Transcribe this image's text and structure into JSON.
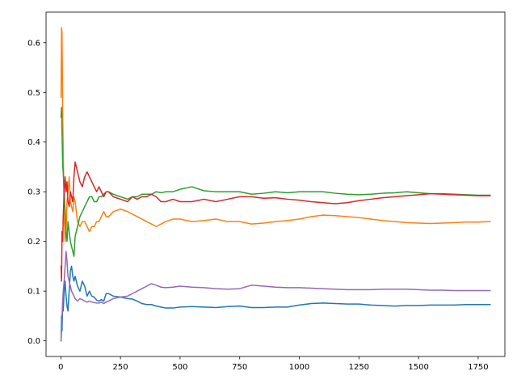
{
  "chart_data": {
    "type": "line",
    "title": "",
    "xlabel": "",
    "ylabel": "",
    "xlim": [
      -62,
      1862
    ],
    "ylim": [
      -0.0315,
      0.6615
    ],
    "xticks": [
      0,
      250,
      500,
      750,
      1000,
      1250,
      1500,
      1750
    ],
    "yticks": [
      0.0,
      0.1,
      0.2,
      0.3,
      0.4,
      0.5,
      0.6
    ],
    "xtick_labels": [
      "0",
      "250",
      "500",
      "750",
      "1000",
      "1250",
      "1500",
      "1750"
    ],
    "ytick_labels": [
      "0.0",
      "0.1",
      "0.2",
      "0.3",
      "0.4",
      "0.5",
      "0.6"
    ],
    "grid": false,
    "legend": "none",
    "series": [
      {
        "color": "#1f77b4",
        "x": [
          1,
          3,
          5,
          8,
          10,
          14,
          18,
          22,
          26,
          30,
          35,
          40,
          45,
          50,
          55,
          60,
          70,
          80,
          90,
          100,
          110,
          120,
          130,
          140,
          150,
          160,
          170,
          180,
          190,
          200,
          220,
          250,
          280,
          300,
          320,
          340,
          360,
          380,
          400,
          420,
          440,
          470,
          500,
          550,
          600,
          650,
          700,
          750,
          800,
          850,
          900,
          950,
          1000,
          1050,
          1100,
          1150,
          1200,
          1250,
          1300,
          1350,
          1400,
          1450,
          1500,
          1550,
          1600,
          1650,
          1700,
          1750,
          1800
        ],
        "y": [
          0.0,
          0.05,
          0.02,
          0.08,
          0.06,
          0.1,
          0.12,
          0.09,
          0.07,
          0.06,
          0.1,
          0.14,
          0.15,
          0.13,
          0.12,
          0.13,
          0.11,
          0.1,
          0.12,
          0.11,
          0.09,
          0.1,
          0.09,
          0.088,
          0.082,
          0.08,
          0.083,
          0.08,
          0.095,
          0.095,
          0.09,
          0.088,
          0.085,
          0.084,
          0.08,
          0.075,
          0.073,
          0.073,
          0.07,
          0.068,
          0.066,
          0.066,
          0.068,
          0.069,
          0.068,
          0.067,
          0.069,
          0.07,
          0.067,
          0.067,
          0.068,
          0.068,
          0.072,
          0.075,
          0.076,
          0.075,
          0.074,
          0.074,
          0.072,
          0.071,
          0.07,
          0.071,
          0.071,
          0.072,
          0.072,
          0.072,
          0.073,
          0.073,
          0.073
        ]
      },
      {
        "color": "#ff7f0e",
        "x": [
          1,
          3,
          5,
          8,
          10,
          14,
          18,
          22,
          26,
          30,
          35,
          40,
          45,
          50,
          55,
          60,
          70,
          80,
          90,
          100,
          110,
          120,
          130,
          140,
          150,
          160,
          170,
          180,
          190,
          200,
          220,
          250,
          280,
          300,
          320,
          340,
          360,
          380,
          400,
          420,
          440,
          470,
          500,
          550,
          600,
          650,
          700,
          750,
          800,
          850,
          900,
          950,
          1000,
          1050,
          1100,
          1150,
          1200,
          1250,
          1300,
          1350,
          1400,
          1450,
          1500,
          1550,
          1600,
          1650,
          1700,
          1750,
          1800
        ],
        "y": [
          0.49,
          0.63,
          0.62,
          0.45,
          0.38,
          0.25,
          0.2,
          0.22,
          0.28,
          0.3,
          0.33,
          0.28,
          0.27,
          0.26,
          0.29,
          0.28,
          0.24,
          0.23,
          0.24,
          0.24,
          0.23,
          0.22,
          0.23,
          0.23,
          0.24,
          0.24,
          0.25,
          0.26,
          0.25,
          0.25,
          0.26,
          0.265,
          0.26,
          0.255,
          0.25,
          0.245,
          0.24,
          0.235,
          0.23,
          0.235,
          0.24,
          0.245,
          0.245,
          0.24,
          0.242,
          0.245,
          0.24,
          0.24,
          0.235,
          0.237,
          0.24,
          0.242,
          0.245,
          0.25,
          0.253,
          0.252,
          0.25,
          0.248,
          0.245,
          0.242,
          0.24,
          0.238,
          0.237,
          0.236,
          0.237,
          0.238,
          0.239,
          0.239,
          0.24
        ]
      },
      {
        "color": "#2ca02c",
        "x": [
          1,
          3,
          5,
          8,
          10,
          14,
          18,
          22,
          26,
          30,
          35,
          40,
          45,
          50,
          55,
          60,
          70,
          80,
          90,
          100,
          110,
          120,
          130,
          140,
          150,
          160,
          170,
          180,
          190,
          200,
          220,
          250,
          280,
          300,
          320,
          340,
          360,
          380,
          400,
          420,
          440,
          470,
          500,
          550,
          600,
          650,
          700,
          750,
          800,
          850,
          900,
          950,
          1000,
          1050,
          1100,
          1150,
          1200,
          1250,
          1300,
          1350,
          1400,
          1450,
          1500,
          1550,
          1600,
          1650,
          1700,
          1750,
          1800
        ],
        "y": [
          0.45,
          0.47,
          0.42,
          0.35,
          0.34,
          0.3,
          0.26,
          0.22,
          0.2,
          0.24,
          0.22,
          0.2,
          0.19,
          0.18,
          0.17,
          0.21,
          0.23,
          0.25,
          0.26,
          0.27,
          0.28,
          0.29,
          0.29,
          0.28,
          0.28,
          0.29,
          0.29,
          0.295,
          0.3,
          0.3,
          0.295,
          0.29,
          0.285,
          0.29,
          0.29,
          0.295,
          0.295,
          0.295,
          0.3,
          0.298,
          0.3,
          0.3,
          0.305,
          0.31,
          0.302,
          0.3,
          0.3,
          0.3,
          0.295,
          0.297,
          0.3,
          0.298,
          0.3,
          0.3,
          0.3,
          0.297,
          0.295,
          0.294,
          0.295,
          0.297,
          0.298,
          0.3,
          0.298,
          0.296,
          0.296,
          0.295,
          0.294,
          0.293,
          0.293
        ]
      },
      {
        "color": "#d62728",
        "x": [
          1,
          3,
          5,
          8,
          10,
          14,
          18,
          22,
          26,
          30,
          35,
          40,
          45,
          50,
          55,
          60,
          70,
          80,
          90,
          100,
          110,
          120,
          130,
          140,
          150,
          160,
          170,
          180,
          190,
          200,
          220,
          250,
          280,
          300,
          320,
          340,
          360,
          380,
          400,
          420,
          440,
          470,
          500,
          550,
          600,
          650,
          700,
          750,
          800,
          850,
          900,
          950,
          1000,
          1050,
          1100,
          1150,
          1200,
          1250,
          1300,
          1350,
          1400,
          1450,
          1500,
          1550,
          1600,
          1650,
          1700,
          1750,
          1800
        ],
        "y": [
          0.15,
          0.12,
          0.22,
          0.2,
          0.25,
          0.3,
          0.33,
          0.3,
          0.32,
          0.28,
          0.27,
          0.3,
          0.29,
          0.28,
          0.33,
          0.36,
          0.34,
          0.32,
          0.31,
          0.33,
          0.34,
          0.33,
          0.32,
          0.31,
          0.3,
          0.31,
          0.3,
          0.29,
          0.3,
          0.3,
          0.29,
          0.285,
          0.28,
          0.29,
          0.285,
          0.29,
          0.29,
          0.295,
          0.29,
          0.28,
          0.28,
          0.285,
          0.28,
          0.28,
          0.285,
          0.28,
          0.285,
          0.29,
          0.29,
          0.287,
          0.288,
          0.285,
          0.283,
          0.28,
          0.278,
          0.276,
          0.278,
          0.282,
          0.285,
          0.288,
          0.29,
          0.292,
          0.294,
          0.296,
          0.295,
          0.294,
          0.293,
          0.292,
          0.292
        ]
      },
      {
        "color": "#9467bd",
        "x": [
          1,
          3,
          5,
          8,
          10,
          14,
          18,
          22,
          26,
          30,
          35,
          40,
          45,
          50,
          55,
          60,
          70,
          80,
          90,
          100,
          110,
          120,
          130,
          140,
          150,
          160,
          170,
          180,
          190,
          200,
          220,
          250,
          280,
          300,
          320,
          340,
          360,
          380,
          400,
          420,
          440,
          470,
          500,
          550,
          600,
          650,
          700,
          750,
          800,
          850,
          900,
          950,
          1000,
          1050,
          1100,
          1150,
          1200,
          1250,
          1300,
          1350,
          1400,
          1450,
          1500,
          1550,
          1600,
          1650,
          1700,
          1750,
          1800
        ],
        "y": [
          0.0,
          0.02,
          0.05,
          0.08,
          0.1,
          0.12,
          0.15,
          0.18,
          0.16,
          0.13,
          0.12,
          0.11,
          0.1,
          0.095,
          0.09,
          0.085,
          0.08,
          0.085,
          0.083,
          0.08,
          0.078,
          0.08,
          0.078,
          0.077,
          0.076,
          0.076,
          0.078,
          0.075,
          0.078,
          0.08,
          0.085,
          0.088,
          0.09,
          0.095,
          0.1,
          0.105,
          0.11,
          0.115,
          0.112,
          0.108,
          0.107,
          0.108,
          0.11,
          0.108,
          0.107,
          0.105,
          0.104,
          0.105,
          0.112,
          0.11,
          0.108,
          0.107,
          0.107,
          0.106,
          0.105,
          0.104,
          0.103,
          0.103,
          0.103,
          0.104,
          0.104,
          0.104,
          0.103,
          0.102,
          0.102,
          0.101,
          0.101,
          0.101,
          0.101
        ]
      }
    ]
  }
}
